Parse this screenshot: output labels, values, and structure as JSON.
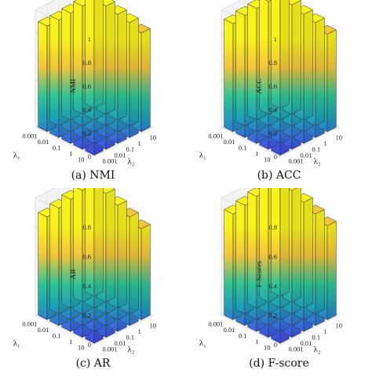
{
  "colors": {
    "top": "#f9f21c",
    "mid_yellow": "#f2c53a",
    "green": "#2fc496",
    "teal": "#1ea0b7",
    "blue": "#3b5ce0",
    "violet": "#4b2fd6"
  },
  "chart_data": [
    {
      "type": "bar3d",
      "caption": "(a) NMI",
      "zlabel": "NMI",
      "xlabel": "λ₁",
      "ylabel": "λ₂",
      "x_ticks": [
        "0.001",
        "0.01",
        "0.1",
        "1",
        "10"
      ],
      "y_ticks": [
        "0.001",
        "0.01",
        "0.1",
        "1",
        "10"
      ],
      "z_ticks": [
        "0",
        "0.2",
        "0.4",
        "0.6",
        "0.8",
        "1"
      ],
      "zlim": [
        0,
        1
      ],
      "grid": true,
      "values": [
        [
          0.9,
          0.9,
          0.91,
          0.92,
          0.93
        ],
        [
          0.9,
          0.92,
          0.93,
          0.93,
          0.92
        ],
        [
          0.91,
          0.92,
          0.93,
          0.91,
          0.9
        ],
        [
          0.92,
          0.92,
          0.91,
          0.9,
          0.88
        ],
        [
          0.91,
          0.9,
          0.89,
          0.86,
          0.84
        ]
      ]
    },
    {
      "type": "bar3d",
      "caption": "(b) ACC",
      "zlabel": "ACC",
      "xlabel": "λ₁",
      "ylabel": "λ₂",
      "x_ticks": [
        "0.001",
        "0.01",
        "0.1",
        "1",
        "10"
      ],
      "y_ticks": [
        "0.001",
        "0.01",
        "0.1",
        "1",
        "10"
      ],
      "z_ticks": [
        "0",
        "0.2",
        "0.4",
        "0.6",
        "0.8",
        "1"
      ],
      "zlim": [
        0,
        1
      ],
      "grid": true,
      "values": [
        [
          0.92,
          0.94,
          0.95,
          0.96,
          0.97
        ],
        [
          0.93,
          0.95,
          0.96,
          0.95,
          0.93
        ],
        [
          0.94,
          0.96,
          0.93,
          0.94,
          0.9
        ],
        [
          0.95,
          0.94,
          0.92,
          0.91,
          0.88
        ],
        [
          0.93,
          0.92,
          0.9,
          0.86,
          0.83
        ]
      ]
    },
    {
      "type": "bar3d",
      "caption": "(c) AR",
      "zlabel": "AR",
      "xlabel": "λ₁",
      "ylabel": "λ₂",
      "x_ticks": [
        "0.001",
        "0.01",
        "0.1",
        "1",
        "10"
      ],
      "y_ticks": [
        "0.001",
        "0.01",
        "0.1",
        "1",
        "10"
      ],
      "z_ticks": [
        "0",
        "0.2",
        "0.4",
        "0.6",
        "0.8"
      ],
      "zlim": [
        0,
        0.8
      ],
      "grid": true,
      "values": [
        [
          0.7,
          0.72,
          0.74,
          0.76,
          0.8
        ],
        [
          0.72,
          0.76,
          0.79,
          0.78,
          0.74
        ],
        [
          0.74,
          0.79,
          0.76,
          0.75,
          0.7
        ],
        [
          0.75,
          0.74,
          0.73,
          0.71,
          0.66
        ],
        [
          0.73,
          0.71,
          0.69,
          0.65,
          0.62
        ]
      ]
    },
    {
      "type": "bar3d",
      "caption": "(d) F-score",
      "zlabel": "F-Scores",
      "xlabel": "λ₁",
      "ylabel": "λ₂",
      "x_ticks": [
        "0.001",
        "0.01",
        "0.1",
        "1",
        "10"
      ],
      "y_ticks": [
        "0.001",
        "0.01",
        "0.1",
        "1",
        "10"
      ],
      "z_ticks": [
        "0",
        "0.2",
        "0.4",
        "0.6",
        "0.8"
      ],
      "zlim": [
        0,
        0.8
      ],
      "grid": true,
      "values": [
        [
          0.72,
          0.74,
          0.76,
          0.78,
          0.8
        ],
        [
          0.74,
          0.78,
          0.8,
          0.79,
          0.76
        ],
        [
          0.76,
          0.8,
          0.78,
          0.77,
          0.72
        ],
        [
          0.77,
          0.76,
          0.75,
          0.73,
          0.68
        ],
        [
          0.75,
          0.73,
          0.71,
          0.67,
          0.64
        ]
      ]
    }
  ]
}
